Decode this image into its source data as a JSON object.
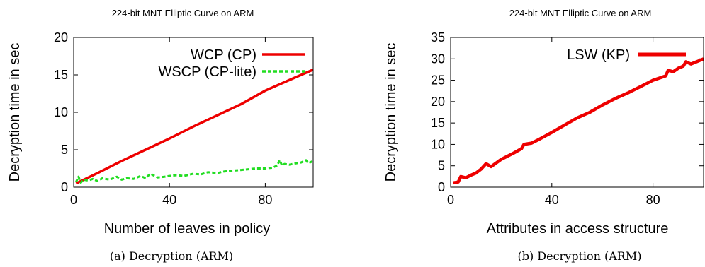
{
  "chart_data": [
    {
      "type": "line",
      "title": "224-bit MNT Elliptic Curve on ARM",
      "xlabel": "Number of leaves in policy",
      "ylabel": "Decryption time in sec",
      "caption": "(a) Decryption (ARM)",
      "xlim": [
        0,
        100
      ],
      "ylim": [
        0,
        20
      ],
      "xticks": [
        0,
        40,
        80
      ],
      "yticks": [
        0,
        5,
        10,
        15,
        20
      ],
      "legend_position": "top-right",
      "grid": false,
      "series": [
        {
          "name": "WCP (CP)",
          "color": "#ee0000",
          "style": "solid",
          "x": [
            1,
            10,
            20,
            30,
            40,
            50,
            60,
            70,
            80,
            90,
            100
          ],
          "y": [
            0.5,
            1.9,
            3.5,
            5.0,
            6.5,
            8.1,
            9.6,
            11.1,
            12.9,
            14.3,
            15.7
          ]
        },
        {
          "name": "WSCP (CP-lite)",
          "color": "#22dd22",
          "style": "dashed",
          "x": [
            1,
            2,
            3,
            4,
            6,
            8,
            10,
            12,
            15,
            18,
            20,
            22,
            25,
            28,
            30,
            32,
            35,
            38,
            40,
            43,
            46,
            50,
            53,
            56,
            60,
            63,
            66,
            70,
            73,
            76,
            80,
            83,
            85,
            86,
            87,
            88,
            90,
            93,
            95,
            97,
            98,
            100
          ],
          "y": [
            0.7,
            1.4,
            0.6,
            1.0,
            0.9,
            1.1,
            0.8,
            1.2,
            1.0,
            1.4,
            1.0,
            1.2,
            1.1,
            1.5,
            1.2,
            1.8,
            1.3,
            1.4,
            1.5,
            1.6,
            1.5,
            1.8,
            1.7,
            2.0,
            1.9,
            2.1,
            2.2,
            2.3,
            2.4,
            2.5,
            2.5,
            2.6,
            2.9,
            3.6,
            2.9,
            3.1,
            3.0,
            3.2,
            3.3,
            3.6,
            3.2,
            3.5
          ]
        }
      ]
    },
    {
      "type": "line",
      "title": "224-bit MNT Elliptic Curve on ARM",
      "xlabel": "Attributes in access structure",
      "ylabel": "Decryption time in sec",
      "caption": "(b) Decryption (ARM)",
      "xlim": [
        0,
        100
      ],
      "ylim": [
        0,
        35
      ],
      "xticks": [
        0,
        40,
        80
      ],
      "yticks": [
        0,
        5,
        10,
        15,
        20,
        25,
        30,
        35
      ],
      "legend_position": "top-right",
      "grid": false,
      "series": [
        {
          "name": "LSW (KP)",
          "color": "#ee0000",
          "style": "solid",
          "x": [
            1,
            3,
            4,
            6,
            8,
            10,
            12,
            14,
            16,
            20,
            25,
            28,
            29,
            32,
            35,
            40,
            45,
            50,
            55,
            60,
            65,
            70,
            75,
            80,
            85,
            86,
            88,
            90,
            92,
            93,
            95,
            98,
            100
          ],
          "y": [
            1.0,
            1.2,
            2.5,
            2.2,
            2.8,
            3.3,
            4.2,
            5.5,
            4.8,
            6.5,
            8.0,
            9.0,
            10.0,
            10.3,
            11.2,
            12.8,
            14.5,
            16.2,
            17.5,
            19.2,
            20.7,
            22.0,
            23.5,
            25.0,
            26.0,
            27.3,
            27.0,
            27.8,
            28.3,
            29.3,
            28.8,
            29.5,
            30.0
          ]
        }
      ]
    }
  ]
}
